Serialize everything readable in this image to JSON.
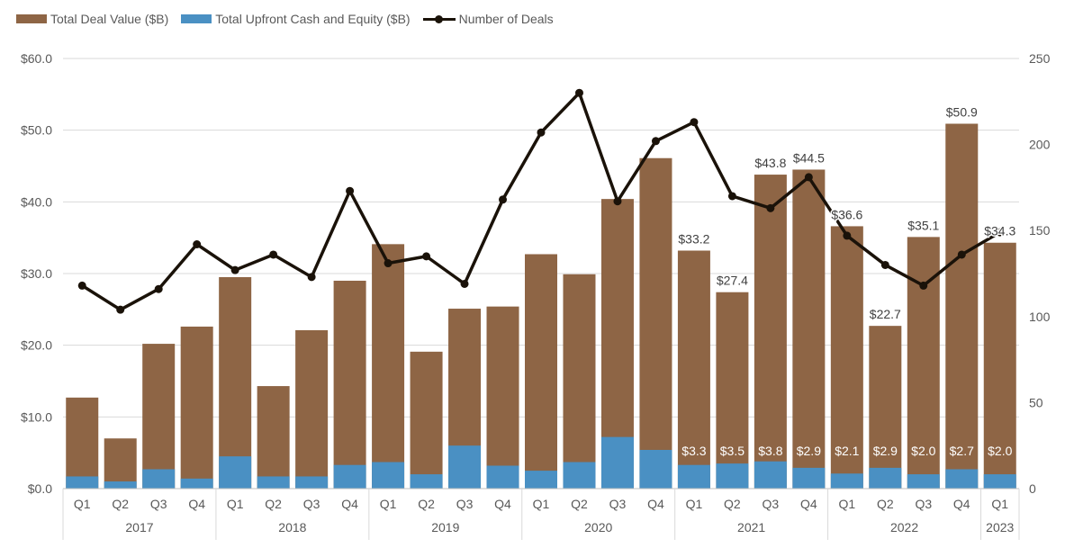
{
  "chart_data": {
    "type": "bar",
    "stacked": "overlap",
    "categories": [
      "Q1",
      "Q2",
      "Q3",
      "Q4",
      "Q1",
      "Q2",
      "Q3",
      "Q4",
      "Q1",
      "Q2",
      "Q3",
      "Q4",
      "Q1",
      "Q2",
      "Q3",
      "Q4",
      "Q1",
      "Q2",
      "Q3",
      "Q4",
      "Q1",
      "Q2",
      "Q3",
      "Q4",
      "Q1"
    ],
    "year_groups": [
      {
        "label": "2017",
        "count": 4
      },
      {
        "label": "2018",
        "count": 4
      },
      {
        "label": "2019",
        "count": 4
      },
      {
        "label": "2020",
        "count": 4
      },
      {
        "label": "2021",
        "count": 4
      },
      {
        "label": "2022",
        "count": 4
      },
      {
        "label": "2023",
        "count": 1
      }
    ],
    "series": [
      {
        "name": "Total Deal Value ($B)",
        "axis": "left",
        "kind": "bar",
        "color": "#8e6545",
        "values": [
          12.7,
          7.0,
          20.2,
          22.6,
          29.5,
          14.3,
          22.1,
          29.0,
          34.1,
          19.1,
          25.1,
          25.4,
          32.7,
          29.9,
          40.4,
          46.1,
          33.2,
          27.4,
          43.8,
          44.5,
          36.6,
          22.7,
          35.1,
          50.9,
          34.3
        ],
        "labels": [
          "",
          "",
          "",
          "",
          "",
          "",
          "",
          "",
          "",
          "",
          "",
          "",
          "",
          "",
          "",
          "",
          "$33.2",
          "$27.4",
          "$43.8",
          "$44.5",
          "$36.6",
          "$22.7",
          "$35.1",
          "$50.9",
          "$34.3"
        ]
      },
      {
        "name": "Total Upfront Cash and Equity ($B)",
        "axis": "left",
        "kind": "bar",
        "color": "#4a90c3",
        "values": [
          1.7,
          1.0,
          2.7,
          1.4,
          4.5,
          1.7,
          1.7,
          3.3,
          3.7,
          2.0,
          6.0,
          3.2,
          2.5,
          3.7,
          7.2,
          5.4,
          3.3,
          3.5,
          3.8,
          2.9,
          2.1,
          2.9,
          2.0,
          2.7,
          2.0
        ],
        "labels": [
          "",
          "",
          "",
          "",
          "",
          "",
          "",
          "",
          "",
          "",
          "",
          "",
          "",
          "",
          "",
          "",
          "$3.3",
          "$3.5",
          "$3.8",
          "$2.9",
          "$2.1",
          "$2.9",
          "$2.0",
          "$2.7",
          "$2.0"
        ]
      },
      {
        "name": "Number of Deals",
        "axis": "right",
        "kind": "line",
        "color": "#1a1209",
        "values": [
          118,
          104,
          116,
          142,
          127,
          136,
          123,
          173,
          131,
          135,
          119,
          168,
          207,
          230,
          167,
          202,
          213,
          170,
          163,
          181,
          147,
          130,
          118,
          136,
          149
        ]
      }
    ],
    "left_axis": {
      "ylim": [
        0,
        60
      ],
      "ticks": [
        0,
        10,
        20,
        30,
        40,
        50,
        60
      ],
      "tick_labels": [
        "$0.0",
        "$10.0",
        "$20.0",
        "$30.0",
        "$40.0",
        "$50.0",
        "$60.0"
      ]
    },
    "right_axis": {
      "ylim": [
        0,
        250
      ],
      "ticks": [
        0,
        50,
        100,
        150,
        200,
        250
      ],
      "tick_labels": [
        "0",
        "50",
        "100",
        "150",
        "200",
        "250"
      ]
    },
    "grid": true,
    "legend": "top-left",
    "title": "",
    "xlabel": "",
    "ylabel": ""
  }
}
